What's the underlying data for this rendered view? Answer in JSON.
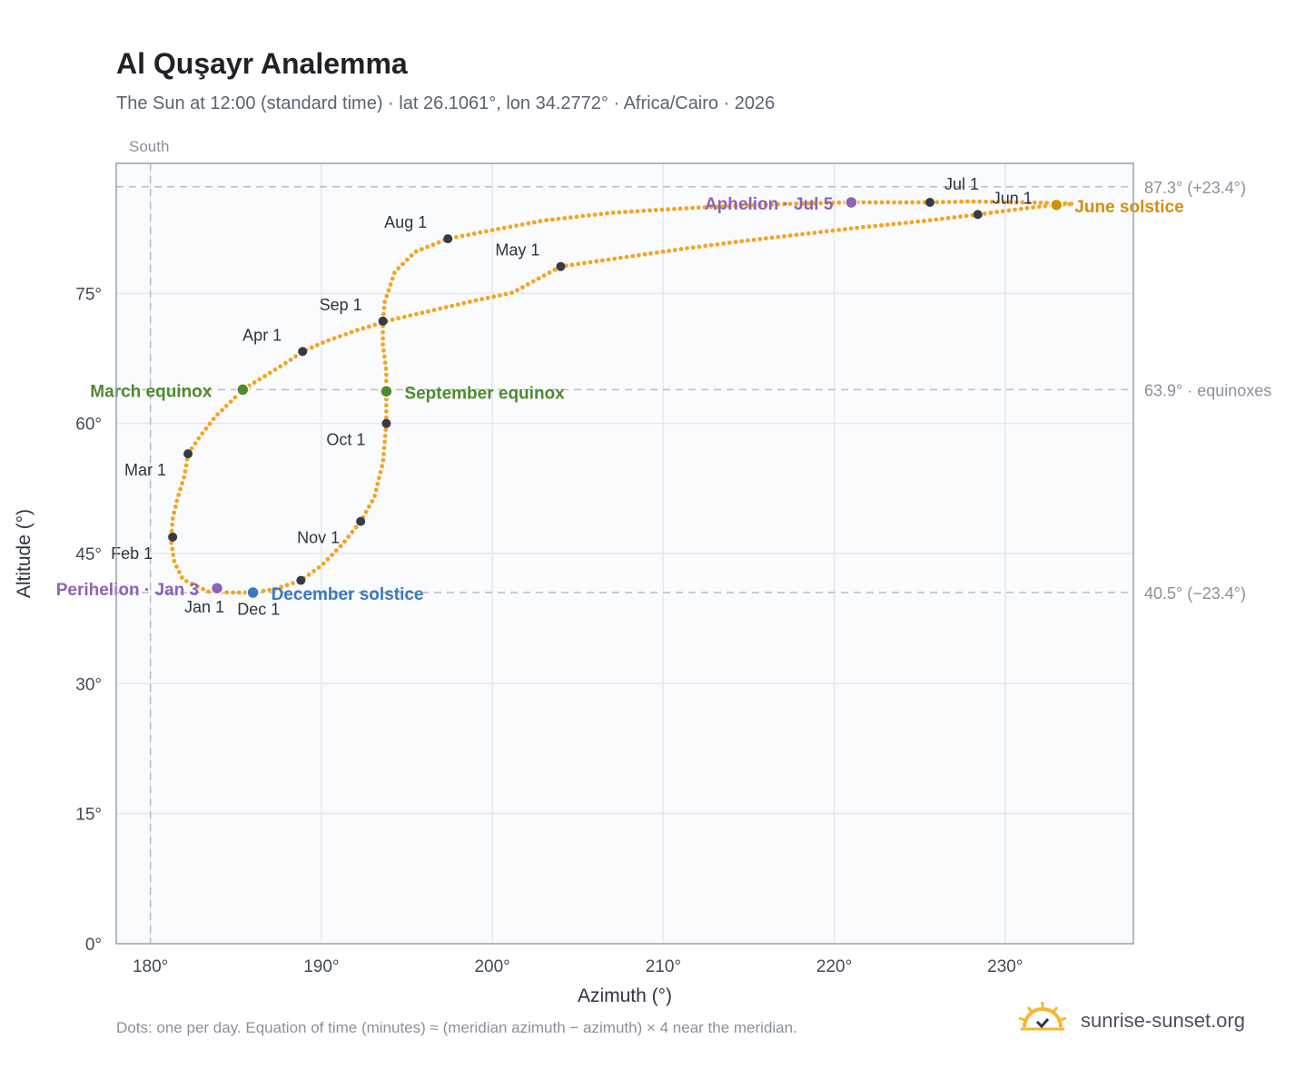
{
  "header": {
    "title": "Al Quşayr Analemma",
    "subtitle": "The Sun at 12:00 (standard time) · lat 26.1061°, lon 34.2772° · Africa/Cairo · 2026"
  },
  "footer": {
    "note": "Dots: one per day. Equation of time (minutes) ≈ (meridian azimuth − azimuth) × 4 near the meridian."
  },
  "brand": {
    "name": "sunrise-sunset.org",
    "icon": "sun-check-icon"
  },
  "chart_data": {
    "type": "scatter",
    "xlabel": "Azimuth (°)",
    "ylabel": "Altitude (°)",
    "xlim": [
      178,
      237.5
    ],
    "ylim": [
      0,
      90
    ],
    "x_ticks": [
      180,
      190,
      200,
      210,
      220,
      230
    ],
    "x_tick_labels": [
      "180°",
      "190°",
      "200°",
      "210°",
      "220°",
      "230°"
    ],
    "y_ticks": [
      0,
      15,
      30,
      45,
      60,
      75
    ],
    "y_tick_labels": [
      "0°",
      "15°",
      "30°",
      "45°",
      "60°",
      "75°"
    ],
    "grid": true,
    "meridian": {
      "azimuth": 180,
      "label": "South"
    },
    "reference_lines": [
      {
        "altitude": 87.3,
        "label": "87.3° (+23.4°)"
      },
      {
        "altitude": 63.9,
        "label": "63.9° · equinoxes"
      },
      {
        "altitude": 40.5,
        "label": "40.5° (−23.4°)"
      }
    ],
    "path": [
      [
        183.4,
        40.6
      ],
      [
        181.9,
        42.0
      ],
      [
        181.4,
        44.0
      ],
      [
        181.2,
        46.5
      ],
      [
        181.3,
        49.0
      ],
      [
        181.6,
        51.5
      ],
      [
        182.0,
        54.0
      ],
      [
        182.2,
        56.5
      ],
      [
        182.9,
        58.5
      ],
      [
        183.8,
        60.8
      ],
      [
        184.8,
        62.7
      ],
      [
        185.4,
        63.9
      ],
      [
        186.8,
        65.6
      ],
      [
        188.1,
        67.2
      ],
      [
        188.9,
        68.3
      ],
      [
        190.3,
        69.5
      ],
      [
        192.0,
        70.7
      ],
      [
        194.0,
        71.9
      ],
      [
        196.2,
        72.9
      ],
      [
        198.6,
        74.0
      ],
      [
        201.2,
        75.1
      ],
      [
        204.0,
        78.1
      ],
      [
        207.5,
        79.1
      ],
      [
        211.0,
        80.1
      ],
      [
        214.5,
        81.0
      ],
      [
        218.0,
        81.8
      ],
      [
        221.5,
        82.6
      ],
      [
        225.0,
        83.3
      ],
      [
        228.4,
        84.1
      ],
      [
        231.5,
        84.9
      ],
      [
        233.0,
        85.2
      ],
      [
        234.0,
        85.3
      ],
      [
        233.4,
        85.4
      ],
      [
        231.0,
        85.5
      ],
      [
        228.0,
        85.6
      ],
      [
        225.6,
        85.5
      ],
      [
        221.0,
        85.5
      ],
      [
        217.0,
        85.3
      ],
      [
        212.0,
        84.9
      ],
      [
        207.0,
        84.3
      ],
      [
        203.0,
        83.4
      ],
      [
        200.0,
        82.3
      ],
      [
        197.4,
        81.3
      ],
      [
        195.5,
        79.8
      ],
      [
        194.3,
        77.5
      ],
      [
        193.7,
        74.0
      ],
      [
        193.6,
        71.8
      ],
      [
        193.6,
        69.0
      ],
      [
        193.8,
        66.0
      ],
      [
        193.8,
        63.7
      ],
      [
        193.8,
        60.0
      ],
      [
        193.6,
        55.5
      ],
      [
        193.1,
        51.5
      ],
      [
        192.3,
        48.7
      ],
      [
        191.2,
        46.0
      ],
      [
        190.0,
        43.6
      ],
      [
        188.8,
        41.9
      ],
      [
        187.3,
        40.9
      ],
      [
        186.0,
        40.5
      ],
      [
        184.8,
        40.5
      ],
      [
        183.4,
        40.6
      ]
    ],
    "month_markers": [
      {
        "label": "Jan 1",
        "az": 184.0,
        "alt": 40.9
      },
      {
        "label": "Feb 1",
        "az": 181.3,
        "alt": 46.9
      },
      {
        "label": "Mar 1",
        "az": 182.2,
        "alt": 56.5
      },
      {
        "label": "Apr 1",
        "az": 188.9,
        "alt": 68.3
      },
      {
        "label": "May 1",
        "az": 204.0,
        "alt": 78.1
      },
      {
        "label": "Jun 1",
        "az": 228.4,
        "alt": 84.1
      },
      {
        "label": "Jul 1",
        "az": 225.6,
        "alt": 85.5
      },
      {
        "label": "Aug 1",
        "az": 197.4,
        "alt": 81.3
      },
      {
        "label": "Sep 1",
        "az": 193.6,
        "alt": 71.8
      },
      {
        "label": "Oct 1",
        "az": 193.8,
        "alt": 60.0
      },
      {
        "label": "Nov 1",
        "az": 192.3,
        "alt": 48.7
      },
      {
        "label": "Dec 1",
        "az": 188.8,
        "alt": 41.9
      }
    ],
    "events": [
      {
        "label": "March equinox",
        "az": 185.4,
        "alt": 63.9,
        "color": "#4f8a2e"
      },
      {
        "label": "September equinox",
        "az": 193.8,
        "alt": 63.7,
        "color": "#4f8a2e"
      },
      {
        "label": "June solstice",
        "az": 233.0,
        "alt": 85.2,
        "color": "#d4900c"
      },
      {
        "label": "December solstice",
        "az": 186.0,
        "alt": 40.5,
        "color": "#3a78c3"
      },
      {
        "label": "Perihelion · Jan 3",
        "az": 183.9,
        "alt": 41.0,
        "color": "#8e62b5"
      },
      {
        "label": "Aphelion · Jul 5",
        "az": 221.0,
        "alt": 85.5,
        "color": "#8e62b5"
      }
    ],
    "colors": {
      "path": "#f2a623",
      "marker": "#353b45",
      "grid": "#e5e8ee",
      "plot_bg": "#fafbfd",
      "frame": "#9aa3b2"
    }
  }
}
